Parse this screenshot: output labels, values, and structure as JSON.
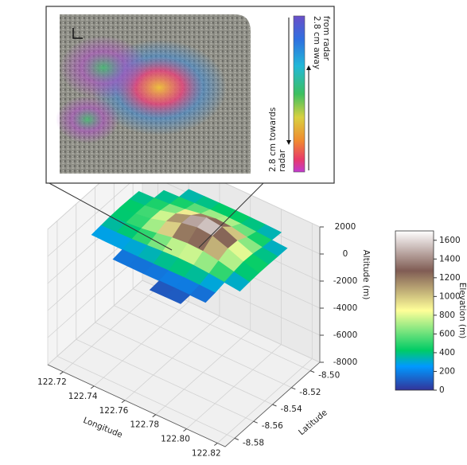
{
  "chart_data": {
    "type": "surface3d",
    "x_label": "Longitude",
    "y_label": "Latitude",
    "z_label": "Altitude (m)",
    "x": [
      122.72,
      122.73,
      122.74,
      122.75,
      122.76,
      122.77,
      122.78,
      122.79,
      122.8,
      122.81
    ],
    "y": [
      -8.58,
      -8.57,
      -8.56,
      -8.55,
      -8.54,
      -8.53,
      -8.52,
      -8.51,
      -8.5,
      -8.49
    ],
    "z": [
      [
        null,
        null,
        null,
        null,
        null,
        60,
        80,
        90,
        null,
        null
      ],
      [
        null,
        null,
        120,
        110,
        100,
        110,
        120,
        110,
        90,
        null
      ],
      [
        250,
        230,
        220,
        210,
        220,
        240,
        260,
        230,
        180,
        null
      ],
      [
        320,
        330,
        360,
        420,
        500,
        560,
        540,
        450,
        330,
        200
      ],
      [
        380,
        420,
        520,
        700,
        900,
        1000,
        950,
        760,
        480,
        260
      ],
      [
        400,
        460,
        620,
        950,
        1350,
        1550,
        1450,
        1050,
        600,
        300
      ],
      [
        380,
        440,
        600,
        900,
        1300,
        1650,
        1500,
        1000,
        560,
        300
      ],
      [
        340,
        380,
        460,
        600,
        800,
        950,
        880,
        640,
        420,
        280
      ],
      [
        null,
        320,
        360,
        420,
        480,
        520,
        500,
        420,
        340,
        260
      ],
      [
        null,
        null,
        300,
        320,
        340,
        350,
        340,
        320,
        280,
        null
      ]
    ],
    "xlim": [
      122.71,
      122.825
    ],
    "ylim": [
      -8.59,
      -8.49
    ],
    "zlim": [
      -8000,
      2000
    ],
    "xticks": [
      122.72,
      122.74,
      122.76,
      122.78,
      {
        "value": 122.8,
        "label": "122.80"
      },
      122.82
    ],
    "yticks": [
      {
        "value": -8.5,
        "label": "-8.50"
      },
      -8.52,
      -8.54,
      -8.56,
      -8.58
    ],
    "zticks": [
      2000,
      0,
      -2000,
      -4000,
      -6000,
      -8000
    ],
    "grid": true,
    "colormap": "terrain",
    "colorbar": {
      "label": "Elevation (m)",
      "lim": [
        0,
        1700
      ],
      "ticks": [
        0,
        200,
        400,
        600,
        800,
        1000,
        1200,
        1400,
        1600
      ]
    },
    "inset": {
      "away_label": [
        "2.8 cm away",
        "from radar"
      ],
      "towards_label": [
        "2.8 cm towards",
        "radar"
      ]
    }
  }
}
